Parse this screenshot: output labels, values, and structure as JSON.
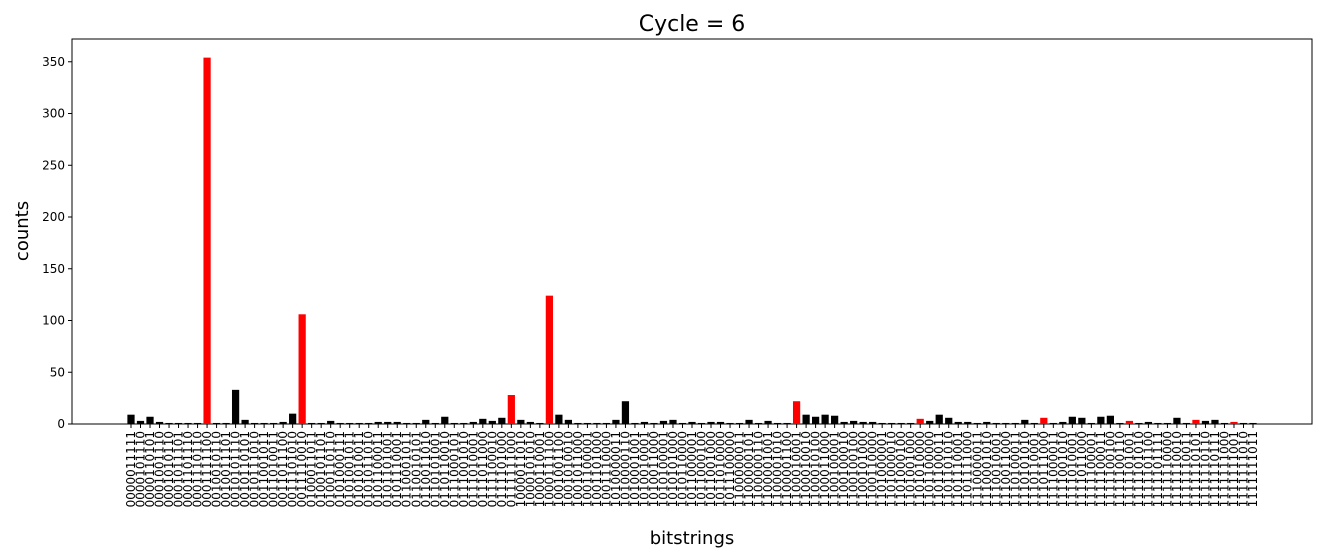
{
  "chart_data": {
    "type": "bar",
    "title": "Cycle  = 6",
    "x_label": "bitstrings",
    "y_label": "counts",
    "categories": [
      "0000011111",
      "0000101110",
      "0000110101",
      "0001001110",
      "0001010110",
      "0001011101",
      "0001101110",
      "0001110110",
      "0001111100",
      "0010010110",
      "0010011101",
      "0010101110",
      "0010110101",
      "0010111010",
      "0011001011",
      "0011010011",
      "0011011100",
      "0011101010",
      "0011110010",
      "0100011011",
      "0100101101",
      "0100110110",
      "0101000111",
      "0101001011",
      "0101010011",
      "0101011010",
      "0101100011",
      "0101101001",
      "0101110001",
      "0110001011",
      "0110010101",
      "0110011010",
      "0110101001",
      "0110110010",
      "0111000101",
      "0111001010",
      "0111010001",
      "0111011000",
      "0111100010",
      "0111101000",
      "0111111000",
      "1000011010",
      "1000101010",
      "1000110001",
      "1000111100",
      "1001001100",
      "1001010010",
      "1001011000",
      "1001100001",
      "1001101000",
      "1001110000",
      "1010000011",
      "1010000110",
      "1010001001",
      "1010010001",
      "1010011000",
      "1010100001",
      "1010101000",
      "1010110000",
      "1011000001",
      "1011000100",
      "1011001000",
      "1011010000",
      "1011100000",
      "1100000011",
      "1100000101",
      "1100000110",
      "1100001001",
      "1100001010",
      "1100001100",
      "1100010001",
      "1100010010",
      "1100010100",
      "1100011000",
      "1100100001",
      "1100100010",
      "1100100100",
      "1100101000",
      "1100110000",
      "1101000001",
      "1101000010",
      "1101000100",
      "1101001000",
      "1101010000",
      "1101100000",
      "1101100011",
      "1101101010",
      "1101110001",
      "1101111000",
      "1110000011",
      "1110001010",
      "1110010001",
      "1110011000",
      "1110100011",
      "1110101010",
      "1110110001",
      "1110111000",
      "1111000011",
      "1111001010",
      "1111010001",
      "1111011000",
      "1111100001",
      "1111100011",
      "1111100100",
      "1111100110",
      "1111101001",
      "1111101010",
      "1111101100",
      "1111101111",
      "1111110000",
      "1111110010",
      "1111110011",
      "1111110101",
      "1111110110",
      "1111110111",
      "1111111000",
      "1111111001",
      "1111111010",
      "1111111011"
    ],
    "values": [
      9,
      3,
      7,
      2,
      1,
      1,
      1,
      1,
      354,
      1,
      1,
      33,
      4,
      1,
      1,
      1,
      2,
      10,
      106,
      1,
      1,
      3,
      1,
      1,
      1,
      1,
      2,
      2,
      2,
      1,
      1,
      4,
      1,
      7,
      1,
      1,
      2,
      5,
      3,
      6,
      28,
      4,
      2,
      1,
      124,
      9,
      4,
      1,
      1,
      1,
      1,
      4,
      22,
      1,
      2,
      1,
      3,
      4,
      1,
      2,
      1,
      2,
      2,
      1,
      1,
      4,
      1,
      3,
      1,
      1,
      22,
      9,
      7,
      9,
      8,
      2,
      3,
      2,
      2,
      1,
      1,
      1,
      1,
      5,
      3,
      9,
      6,
      2,
      2,
      1,
      2,
      1,
      1,
      1,
      4,
      1,
      6,
      1,
      2,
      7,
      6,
      1,
      7,
      8,
      1,
      3,
      1,
      2,
      1,
      1,
      6,
      1,
      4,
      3,
      4,
      1,
      2,
      1,
      1
    ],
    "colors": [
      "#000000",
      "#000000",
      "#000000",
      "#000000",
      "#000000",
      "#000000",
      "#000000",
      "#000000",
      "#ff0000",
      "#000000",
      "#000000",
      "#000000",
      "#000000",
      "#000000",
      "#000000",
      "#000000",
      "#000000",
      "#000000",
      "#ff0000",
      "#000000",
      "#000000",
      "#000000",
      "#000000",
      "#000000",
      "#000000",
      "#000000",
      "#000000",
      "#000000",
      "#000000",
      "#000000",
      "#000000",
      "#000000",
      "#000000",
      "#000000",
      "#000000",
      "#000000",
      "#000000",
      "#000000",
      "#000000",
      "#000000",
      "#ff0000",
      "#000000",
      "#000000",
      "#000000",
      "#ff0000",
      "#000000",
      "#000000",
      "#000000",
      "#000000",
      "#000000",
      "#000000",
      "#000000",
      "#000000",
      "#000000",
      "#000000",
      "#000000",
      "#000000",
      "#000000",
      "#000000",
      "#000000",
      "#000000",
      "#000000",
      "#000000",
      "#000000",
      "#000000",
      "#000000",
      "#000000",
      "#000000",
      "#000000",
      "#000000",
      "#ff0000",
      "#000000",
      "#000000",
      "#000000",
      "#000000",
      "#000000",
      "#000000",
      "#000000",
      "#000000",
      "#000000",
      "#000000",
      "#000000",
      "#000000",
      "#ff0000",
      "#000000",
      "#000000",
      "#000000",
      "#000000",
      "#000000",
      "#000000",
      "#000000",
      "#000000",
      "#000000",
      "#000000",
      "#000000",
      "#000000",
      "#ff0000",
      "#000000",
      "#000000",
      "#000000",
      "#000000",
      "#000000",
      "#000000",
      "#000000",
      "#000000",
      "#ff0000",
      "#000000",
      "#000000",
      "#000000",
      "#000000",
      "#000000",
      "#000000",
      "#ff0000",
      "#000000",
      "#000000",
      "#000000",
      "#ff0000",
      "#000000",
      "#000000"
    ],
    "ylim": [
      0,
      372
    ],
    "yticks": [
      0,
      50,
      100,
      150,
      200,
      250,
      300,
      350
    ],
    "grid": false
  }
}
